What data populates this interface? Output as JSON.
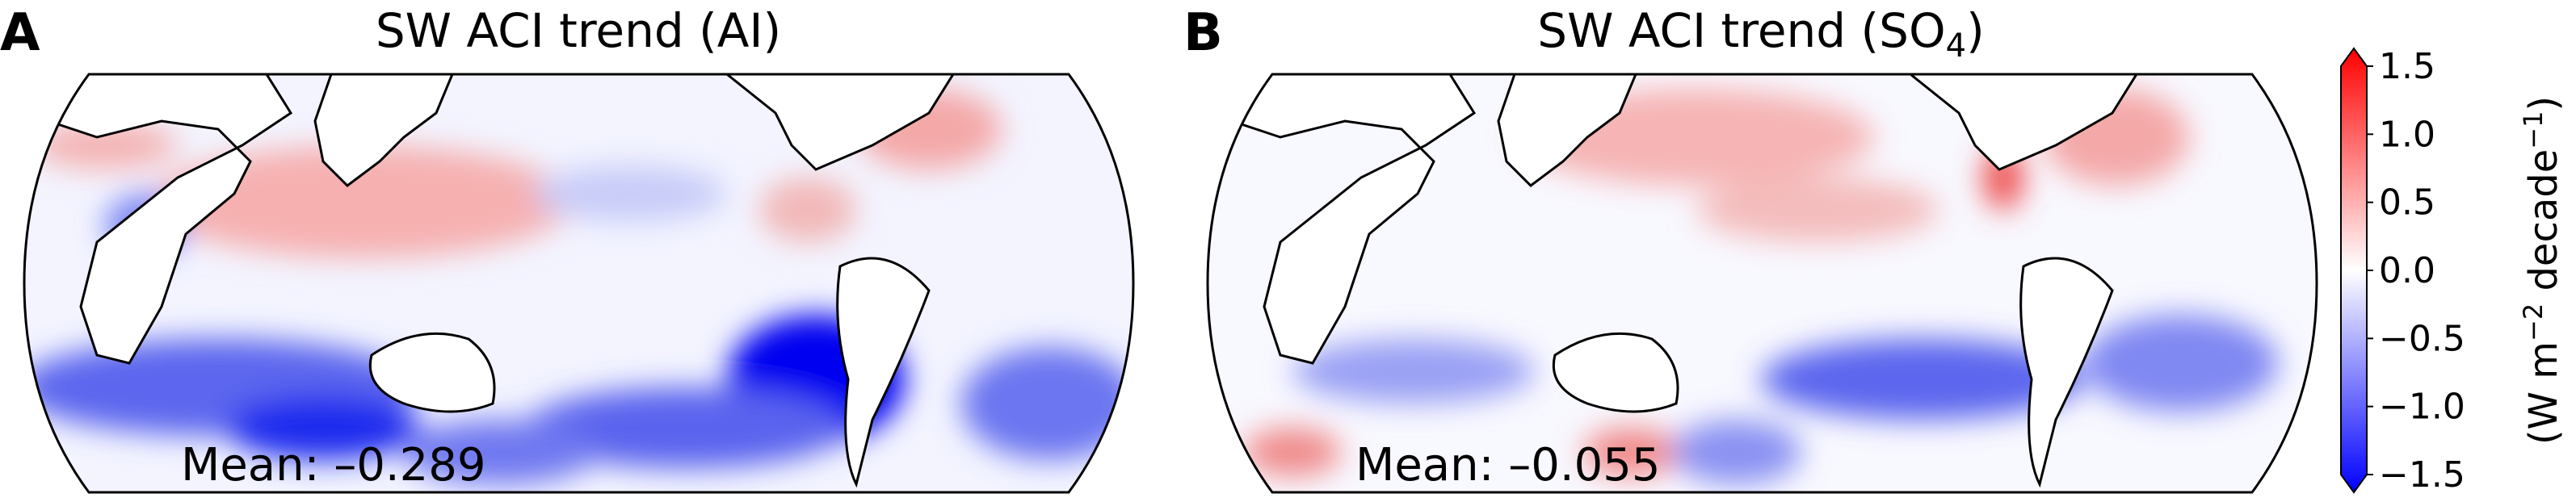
{
  "panels": [
    {
      "letter": "A",
      "title": "SW ACI trend (AI)",
      "mean_label": "Mean: –0.289"
    },
    {
      "letter": "B",
      "title_main": "SW ACI trend (SO",
      "title_sub": "4",
      "title_end": ")",
      "mean_label": "Mean: –0.055"
    }
  ],
  "colorbar": {
    "ticks": [
      "1.5",
      "1.0",
      "0.5",
      "0.0",
      "−0.5",
      "−1.0",
      "−1.5"
    ],
    "label_main": "(W m",
    "label_sup1": "−2",
    "label_mid": " decade",
    "label_sup2": "−1",
    "label_end": ")",
    "colors": {
      "max": "#ff0000",
      "mid": "#ffffff",
      "min": "#0000ff"
    }
  },
  "chart_data": {
    "type": "heatmap",
    "title": [
      "SW ACI trend (AI)",
      "SW ACI trend (SO4)"
    ],
    "means": [
      -0.289,
      -0.055
    ],
    "colorbar_range": [
      -1.5,
      1.5
    ],
    "colorbar_ticks": [
      -1.5,
      -1.0,
      -0.5,
      0.0,
      0.5,
      1.0,
      1.5
    ],
    "colorbar_label": "(W m^-2 decade^-1)",
    "colormap": "bwr"
  }
}
